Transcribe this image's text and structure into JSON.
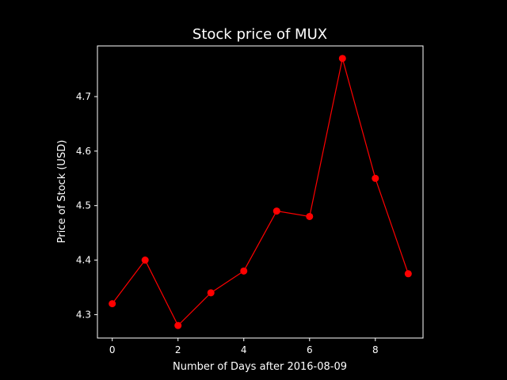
{
  "chart_data": {
    "type": "line",
    "title": "Stock price of MUX",
    "xlabel": "Number of Days after 2016-08-09",
    "ylabel": "Price of Stock (USD)",
    "x": [
      0,
      1,
      2,
      3,
      4,
      5,
      6,
      7,
      8,
      9
    ],
    "series": [
      {
        "values": [
          4.32,
          4.4,
          4.28,
          4.34,
          4.38,
          4.49,
          4.48,
          4.77,
          4.55,
          4.375
        ],
        "color": "#ff0000",
        "marker": "circle"
      }
    ],
    "xlim": [
      -0.45,
      9.45
    ],
    "ylim": [
      4.257,
      4.793
    ],
    "xticks": [
      0,
      2,
      4,
      6,
      8
    ],
    "xtick_labels": [
      "0",
      "2",
      "4",
      "6",
      "8"
    ],
    "yticks": [
      4.3,
      4.4,
      4.5,
      4.6,
      4.7
    ],
    "ytick_labels": [
      "4.3",
      "4.4",
      "4.5",
      "4.6",
      "4.7"
    ],
    "grid": false,
    "legend": "none",
    "colors": {
      "background": "#000000",
      "foreground": "#ffffff",
      "line": "#ff0000"
    }
  }
}
